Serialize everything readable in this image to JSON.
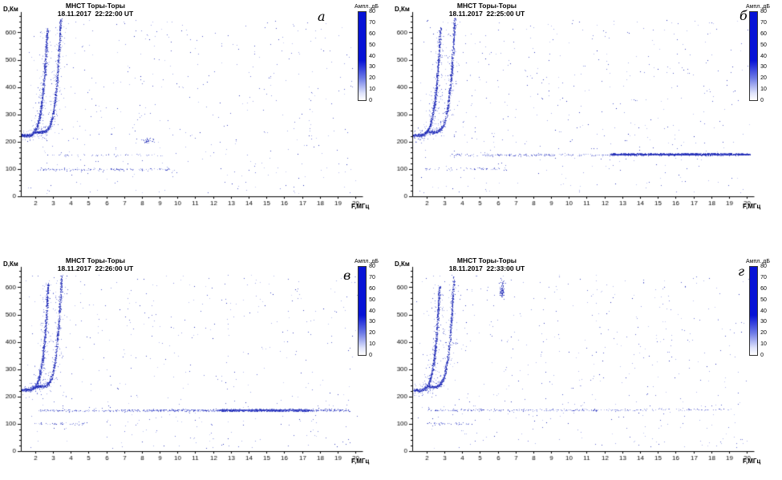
{
  "figure": {
    "background": "#ffffff",
    "rows": 2,
    "cols": 2
  },
  "palette": {
    "dark": "#1f2ab4",
    "mid": "#4d58cf",
    "light": "#9aa3e6",
    "axis": "#000000"
  },
  "chart_data": [
    {
      "type": "scatter",
      "panel_label": "а",
      "title": "МНСТ Торы-Торы",
      "datetime": "18.11.2017  22:22:00 UT",
      "xlabel": "F,МГц",
      "ylabel": "D,Км",
      "xlim": [
        1.2,
        20.4
      ],
      "ylim": [
        0,
        660
      ],
      "x_ticks": [
        2,
        3,
        4,
        5,
        6,
        7,
        8,
        9,
        10,
        11,
        12,
        13,
        14,
        15,
        16,
        17,
        18,
        19,
        20
      ],
      "y_ticks": [
        0,
        100,
        200,
        300,
        400,
        500,
        600
      ],
      "grid": false,
      "colorbar": {
        "label": "Ампл.,дБ",
        "ticks": [
          80,
          70,
          60,
          50,
          40,
          30,
          20,
          10,
          0
        ],
        "gradient": [
          "#0713d6 0%",
          "#0713d6 55%",
          "#6d7ae6 75%",
          "#dfe3fb 92%",
          "#ffffff 100%"
        ]
      },
      "features": [
        {
          "kind": "trace",
          "f0": 1.25,
          "fc": 2.7,
          "yb": 222,
          "yt": 612,
          "gamma": 5,
          "points": 780,
          "fjit": 0.06,
          "yjit": 5
        },
        {
          "kind": "trace",
          "f0": 2.05,
          "fc": 3.45,
          "yb": 234,
          "yt": 648,
          "gamma": 5,
          "points": 620,
          "fjit": 0.06,
          "yjit": 5
        },
        {
          "kind": "band",
          "y": 98,
          "x0": 2.2,
          "x1": 9.6,
          "points": 150,
          "yjit": 5,
          "tone": "sparse"
        },
        {
          "kind": "band",
          "y": 150,
          "x0": 2.6,
          "x1": 9.2,
          "points": 60,
          "yjit": 4,
          "tone": "sparse"
        },
        {
          "kind": "blob",
          "x": 8.3,
          "y": 204,
          "xr": 0.35,
          "yr": 9,
          "points": 35
        },
        {
          "kind": "noise",
          "points": 430
        }
      ]
    },
    {
      "type": "scatter",
      "panel_label": "б",
      "title": "МНСТ Торы-Торы",
      "datetime": "18.11.2017  22:25:00 UT",
      "xlabel": "F,МГц",
      "ylabel": "D,Км",
      "xlim": [
        1.2,
        20.4
      ],
      "ylim": [
        0,
        660
      ],
      "x_ticks": [
        2,
        3,
        4,
        5,
        6,
        7,
        8,
        9,
        10,
        11,
        12,
        13,
        14,
        15,
        16,
        17,
        18,
        19,
        20
      ],
      "y_ticks": [
        0,
        100,
        200,
        300,
        400,
        500,
        600
      ],
      "grid": false,
      "colorbar": {
        "label": "Ампл.,дБ",
        "ticks": [
          80,
          70,
          60,
          50,
          40,
          30,
          20,
          10,
          0
        ],
        "gradient": [
          "#0713d6 0%",
          "#0713d6 55%",
          "#6d7ae6 75%",
          "#dfe3fb 92%",
          "#ffffff 100%"
        ]
      },
      "features": [
        {
          "kind": "trace",
          "f0": 1.25,
          "fc": 2.8,
          "yb": 222,
          "yt": 615,
          "gamma": 5,
          "points": 780,
          "fjit": 0.06,
          "yjit": 5
        },
        {
          "kind": "trace",
          "f0": 2.1,
          "fc": 3.6,
          "yb": 234,
          "yt": 650,
          "gamma": 5,
          "points": 620,
          "fjit": 0.06,
          "yjit": 5
        },
        {
          "kind": "band",
          "y": 153,
          "x0": 12.4,
          "x1": 20.2,
          "points": 1700,
          "yjit": 3.5,
          "tone": "dark"
        },
        {
          "kind": "band",
          "y": 151,
          "x0": 3.4,
          "x1": 12.4,
          "points": 190,
          "yjit": 4,
          "tone": "sparse"
        },
        {
          "kind": "band",
          "y": 100,
          "x0": 2.0,
          "x1": 6.5,
          "points": 60,
          "yjit": 5,
          "tone": "sparse"
        },
        {
          "kind": "noise",
          "points": 460
        }
      ]
    },
    {
      "type": "scatter",
      "panel_label": "в",
      "title": "МНСТ Торы-Торы",
      "datetime": "18.11.2017  22:26:00 UT",
      "xlabel": "F,МГц",
      "ylabel": "D,Км",
      "xlim": [
        1.2,
        20.4
      ],
      "ylim": [
        0,
        660
      ],
      "x_ticks": [
        2,
        3,
        4,
        5,
        6,
        7,
        8,
        9,
        10,
        11,
        12,
        13,
        14,
        15,
        16,
        17,
        18,
        19,
        20
      ],
      "y_ticks": [
        0,
        100,
        200,
        300,
        400,
        500,
        600
      ],
      "grid": false,
      "colorbar": {
        "label": "Ампл.,дБ",
        "ticks": [
          80,
          70,
          60,
          50,
          40,
          30,
          20,
          10,
          0
        ],
        "gradient": [
          "#0713d6 0%",
          "#0713d6 55%",
          "#6d7ae6 75%",
          "#dfe3fb 92%",
          "#ffffff 100%"
        ]
      },
      "features": [
        {
          "kind": "trace",
          "f0": 1.3,
          "fc": 2.75,
          "yb": 224,
          "yt": 612,
          "gamma": 5,
          "points": 780,
          "fjit": 0.06,
          "yjit": 5
        },
        {
          "kind": "trace",
          "f0": 2.1,
          "fc": 3.5,
          "yb": 236,
          "yt": 642,
          "gamma": 5,
          "points": 620,
          "fjit": 0.06,
          "yjit": 5
        },
        {
          "kind": "band",
          "y": 149,
          "x0": 12.4,
          "x1": 17.4,
          "points": 1400,
          "yjit": 3.5,
          "tone": "dark"
        },
        {
          "kind": "band",
          "y": 149,
          "x0": 8.6,
          "x1": 19.8,
          "points": 520,
          "yjit": 4,
          "tone": "mid"
        },
        {
          "kind": "band",
          "y": 148,
          "x0": 2.2,
          "x1": 8.6,
          "points": 180,
          "yjit": 4,
          "tone": "sparse"
        },
        {
          "kind": "band",
          "y": 100,
          "x0": 2.0,
          "x1": 5.0,
          "points": 45,
          "yjit": 5,
          "tone": "sparse"
        },
        {
          "kind": "noise",
          "points": 440
        }
      ]
    },
    {
      "type": "scatter",
      "panel_label": "г",
      "title": "МНСТ Торы-Торы",
      "datetime": "18.11.2017  22:33:00 UT",
      "xlabel": "F,МГц",
      "ylabel": "D,Км",
      "xlim": [
        1.2,
        20.4
      ],
      "ylim": [
        0,
        660
      ],
      "x_ticks": [
        2,
        3,
        4,
        5,
        6,
        7,
        8,
        9,
        10,
        11,
        12,
        13,
        14,
        15,
        16,
        17,
        18,
        19,
        20
      ],
      "y_ticks": [
        0,
        100,
        200,
        300,
        400,
        500,
        600
      ],
      "grid": false,
      "colorbar": {
        "label": "Ампл.,дБ",
        "ticks": [
          80,
          70,
          60,
          50,
          40,
          30,
          20,
          10,
          0
        ],
        "gradient": [
          "#0713d6 0%",
          "#0713d6 55%",
          "#6d7ae6 75%",
          "#dfe3fb 92%",
          "#ffffff 100%"
        ]
      },
      "features": [
        {
          "kind": "trace",
          "f0": 1.3,
          "fc": 2.75,
          "yb": 222,
          "yt": 602,
          "gamma": 5,
          "points": 720,
          "fjit": 0.06,
          "yjit": 5
        },
        {
          "kind": "trace",
          "f0": 2.1,
          "fc": 3.55,
          "yb": 234,
          "yt": 638,
          "gamma": 5,
          "points": 560,
          "fjit": 0.06,
          "yjit": 5
        },
        {
          "kind": "blob",
          "x": 6.25,
          "y": 590,
          "xr": 0.13,
          "yr": 30,
          "points": 90
        },
        {
          "kind": "band",
          "y": 150,
          "x0": 2.0,
          "x1": 14.2,
          "points": 250,
          "yjit": 4,
          "tone": "sparse"
        },
        {
          "kind": "band",
          "y": 152,
          "x0": 14.2,
          "x1": 19.2,
          "points": 60,
          "yjit": 4,
          "tone": "sparse"
        },
        {
          "kind": "band",
          "y": 100,
          "x0": 2.0,
          "x1": 4.6,
          "points": 40,
          "yjit": 5,
          "tone": "sparse"
        },
        {
          "kind": "noise",
          "points": 470
        }
      ]
    }
  ]
}
